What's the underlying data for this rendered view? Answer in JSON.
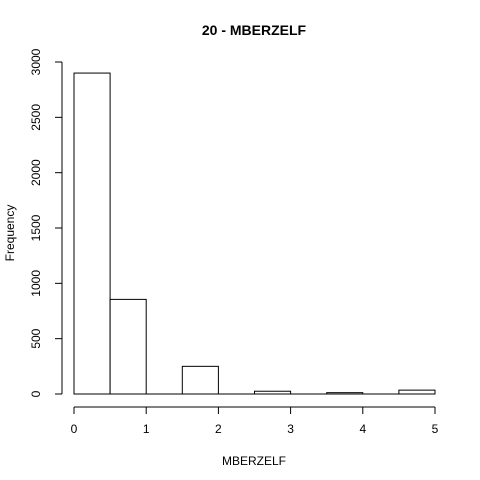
{
  "chart_data": {
    "type": "bar",
    "title": "20 - MBERZELF",
    "xlabel": "MBERZELF",
    "ylabel": "Frequency",
    "bins": [
      {
        "x0": 0.0,
        "x1": 0.5,
        "count": 2900
      },
      {
        "x0": 0.5,
        "x1": 1.0,
        "count": 855
      },
      {
        "x0": 1.0,
        "x1": 1.5,
        "count": 0
      },
      {
        "x0": 1.5,
        "x1": 2.0,
        "count": 250
      },
      {
        "x0": 2.0,
        "x1": 2.5,
        "count": 0
      },
      {
        "x0": 2.5,
        "x1": 3.0,
        "count": 25
      },
      {
        "x0": 3.0,
        "x1": 3.5,
        "count": 0
      },
      {
        "x0": 3.5,
        "x1": 4.0,
        "count": 12
      },
      {
        "x0": 4.0,
        "x1": 4.5,
        "count": 0
      },
      {
        "x0": 4.5,
        "x1": 5.0,
        "count": 35
      }
    ],
    "xlim": [
      0,
      5
    ],
    "ylim": [
      0,
      3000
    ],
    "xticks": [
      "0",
      "1",
      "2",
      "3",
      "4",
      "5"
    ],
    "yticks": [
      "0",
      "500",
      "1000",
      "1500",
      "2000",
      "2500",
      "3000"
    ],
    "grid": false
  }
}
